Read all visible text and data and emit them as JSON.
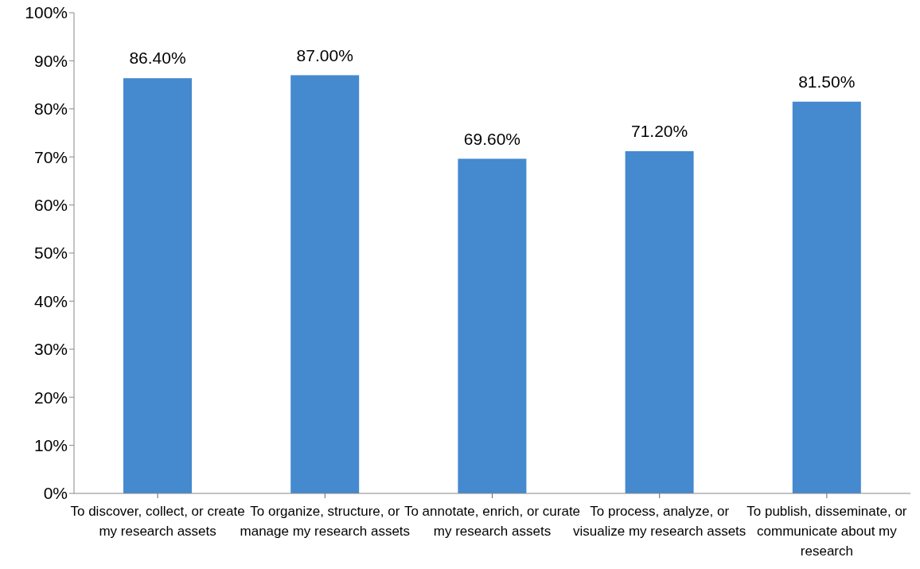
{
  "chart_data": {
    "type": "bar",
    "categories": [
      "To discover, collect, or create my research assets",
      "To organize, structure, or manage my research assets",
      "To annotate, enrich, or curate my research assets",
      "To process, analyze, or visualize my research assets",
      "To publish, disseminate, or communicate about my research"
    ],
    "values": [
      86.4,
      87.0,
      69.6,
      71.2,
      81.5
    ],
    "value_labels": [
      "86.40%",
      "87.00%",
      "69.60%",
      "71.20%",
      "81.50%"
    ],
    "color": "#4589cf",
    "ylim": [
      0,
      100
    ],
    "yticks": [
      {
        "value": 0,
        "label": "0%"
      },
      {
        "value": 10,
        "label": "10%"
      },
      {
        "value": 20,
        "label": "20%"
      },
      {
        "value": 30,
        "label": "30%"
      },
      {
        "value": 40,
        "label": "40%"
      },
      {
        "value": 50,
        "label": "50%"
      },
      {
        "value": 60,
        "label": "60%"
      },
      {
        "value": 70,
        "label": "70%"
      },
      {
        "value": 80,
        "label": "80%"
      },
      {
        "value": 90,
        "label": "90%"
      },
      {
        "value": 100,
        "label": "100%"
      }
    ],
    "grid": false,
    "legend": false
  }
}
